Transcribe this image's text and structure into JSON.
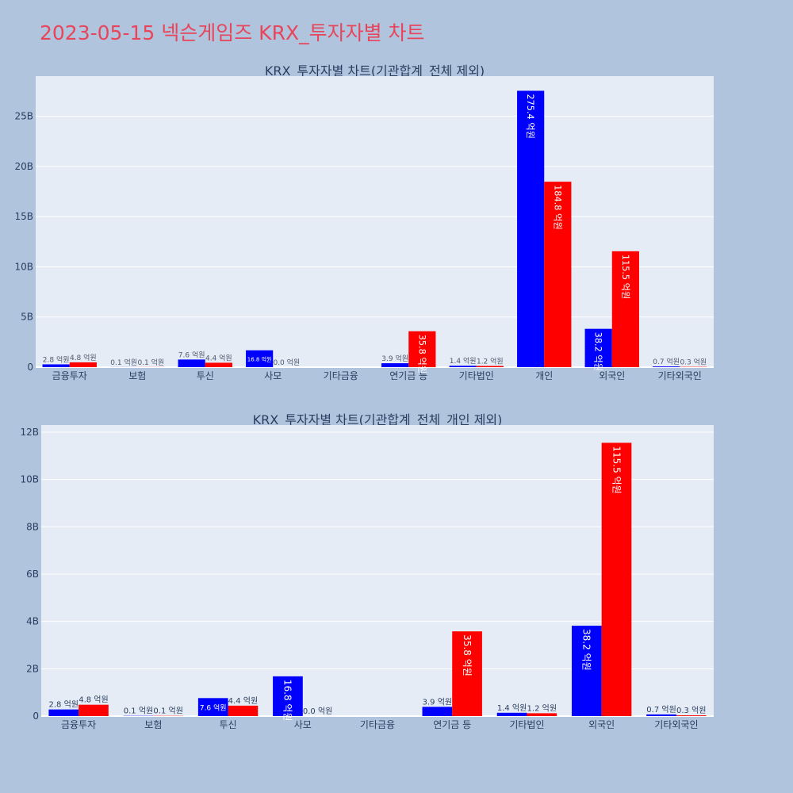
{
  "page": {
    "title": "2023-05-15 넥슨게임즈 KRX_투자자별 차트"
  },
  "colors": {
    "background": "#b0c4de",
    "plot_background": "#e5ecf6",
    "title": "#e8455a",
    "buy": "#0000ff",
    "sell": "#ff0000",
    "text": "#2a3f5f",
    "outside_label": "#505a6e",
    "inside_label": "#ffffff"
  },
  "chart_data": [
    {
      "type": "bar",
      "title": "KRX_투자자별 차트(기관합계_전체 제외)",
      "xlabel": "",
      "ylabel": "",
      "categories": [
        "금융투자",
        "보험",
        "투신",
        "사모",
        "기타금융",
        "연기금 등",
        "기타법인",
        "개인",
        "외국인",
        "기타외국인"
      ],
      "ylim": [
        0,
        29
      ],
      "y_ticks": [
        0,
        5,
        10,
        15,
        20,
        25
      ],
      "y_tick_labels": [
        "0",
        "5B",
        "10B",
        "15B",
        "20B",
        "25B"
      ],
      "grid": true,
      "legend": "none",
      "series": [
        {
          "color": "#0000ff",
          "values": [
            0.28,
            0.01,
            0.76,
            1.68,
            0,
            0.39,
            0.14,
            27.54,
            3.82,
            0.07
          ],
          "labels": [
            "2.8 억원",
            "0.1 억원",
            "7.6 억원",
            "16.8 억원",
            "",
            "3.9 억원",
            "1.4 억원",
            "275.4 억원",
            "38.2 억원",
            "0.7 억원"
          ]
        },
        {
          "color": "#ff0000",
          "values": [
            0.48,
            0.01,
            0.44,
            0.0,
            0,
            3.58,
            0.12,
            18.48,
            11.55,
            0.03
          ],
          "labels": [
            "4.8 억원",
            "0.1 억원",
            "4.4 억원",
            "0.0 억원",
            "",
            "35.8 억원",
            "1.2 억원",
            "184.8 억원",
            "115.5 억원",
            "0.3 억원"
          ]
        }
      ]
    },
    {
      "type": "bar",
      "title": "KRX_투자자별 차트(기관합계_전체_개인 제외)",
      "xlabel": "",
      "ylabel": "",
      "categories": [
        "금융투자",
        "보험",
        "투신",
        "사모",
        "기타금융",
        "연기금 등",
        "기타법인",
        "외국인",
        "기타외국인"
      ],
      "ylim": [
        0,
        12.3
      ],
      "y_ticks": [
        0,
        2,
        4,
        6,
        8,
        10,
        12
      ],
      "y_tick_labels": [
        "0",
        "2B",
        "4B",
        "6B",
        "8B",
        "10B",
        "12B"
      ],
      "grid": true,
      "legend": "none",
      "series": [
        {
          "color": "#0000ff",
          "values": [
            0.28,
            0.01,
            0.76,
            1.68,
            0,
            0.39,
            0.14,
            3.82,
            0.07
          ],
          "labels": [
            "2.8 억원",
            "0.1 억원",
            "7.6 억원",
            "16.8 억원",
            "",
            "3.9 억원",
            "1.4 억원",
            "38.2 억원",
            "0.7 억원"
          ]
        },
        {
          "color": "#ff0000",
          "values": [
            0.48,
            0.01,
            0.44,
            0.0,
            0,
            3.58,
            0.12,
            11.55,
            0.03
          ],
          "labels": [
            "4.8 억원",
            "0.1 억원",
            "4.4 억원",
            "0.0 억원",
            "",
            "35.8 억원",
            "1.2 억원",
            "115.5 억원",
            "0.3 억원"
          ]
        }
      ]
    }
  ]
}
